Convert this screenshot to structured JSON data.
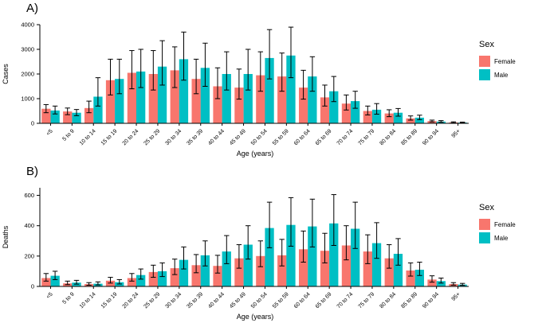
{
  "page": {
    "background": "#ffffff"
  },
  "chart_data": [
    {
      "type": "bar",
      "panel_label": "A)",
      "ylabel": "Cases",
      "xlabel": "Age (years)",
      "ylim": [
        0,
        4000
      ],
      "yticks": [
        0,
        1000,
        2000,
        3000,
        4000
      ],
      "grid": false,
      "error_bars": true,
      "legend": {
        "title": "Sex",
        "position": "right"
      },
      "categories": [
        "<5",
        "5 to 9",
        "10 to 14",
        "15 to 19",
        "20 to 24",
        "25 to 29",
        "30 to 34",
        "35 to 39",
        "40 to 44",
        "45 to 49",
        "50 to 54",
        "55 to 59",
        "60 to 64",
        "65 to 69",
        "70 to 74",
        "75 to 79",
        "80 to 84",
        "85 to 89",
        "90 to 94",
        "95+"
      ],
      "series": [
        {
          "name": "Female",
          "color": "#F8766D",
          "values": [
            590,
            480,
            620,
            1750,
            2050,
            2000,
            2150,
            1800,
            1500,
            1450,
            1950,
            1900,
            1450,
            1050,
            800,
            500,
            400,
            200,
            90,
            35
          ],
          "err_low": [
            430,
            350,
            430,
            1150,
            1400,
            1350,
            1450,
            1200,
            1000,
            980,
            1300,
            1300,
            980,
            700,
            540,
            340,
            270,
            130,
            60,
            20
          ],
          "err_high": [
            760,
            620,
            900,
            2600,
            2950,
            2950,
            3100,
            2600,
            2250,
            2200,
            2900,
            2850,
            2150,
            1550,
            1150,
            700,
            550,
            300,
            130,
            60
          ]
        },
        {
          "name": "Male",
          "color": "#00BFC4",
          "values": [
            520,
            430,
            1080,
            1800,
            2100,
            2300,
            2600,
            2250,
            2000,
            2000,
            2650,
            2750,
            1900,
            1300,
            900,
            550,
            430,
            230,
            70,
            30
          ],
          "err_low": [
            380,
            310,
            700,
            1200,
            1450,
            1550,
            1750,
            1500,
            1350,
            1350,
            1800,
            1850,
            1300,
            880,
            610,
            370,
            290,
            150,
            45,
            18
          ],
          "err_high": [
            700,
            560,
            1850,
            2600,
            3000,
            3350,
            3700,
            3250,
            2900,
            3000,
            3800,
            3900,
            2700,
            1900,
            1300,
            800,
            600,
            330,
            110,
            50
          ]
        }
      ]
    },
    {
      "type": "bar",
      "panel_label": "B)",
      "ylabel": "Deaths",
      "xlabel": "Age (years)",
      "ylim": [
        0,
        650
      ],
      "yticks": [
        0,
        200,
        400,
        600
      ],
      "grid": false,
      "error_bars": true,
      "legend": {
        "title": "Sex",
        "position": "right"
      },
      "categories": [
        "<5",
        "5 to 9",
        "10 to 14",
        "15 to 19",
        "20 to 24",
        "25 to 29",
        "30 to 34",
        "35 to 39",
        "40 to 44",
        "45 to 49",
        "50 to 54",
        "55 to 59",
        "60 to 64",
        "65 to 69",
        "70 to 74",
        "75 to 79",
        "80 to 84",
        "85 to 89",
        "90 to 94",
        "95+"
      ],
      "series": [
        {
          "name": "Female",
          "color": "#F8766D",
          "values": [
            55,
            20,
            15,
            38,
            55,
            95,
            120,
            140,
            135,
            185,
            200,
            205,
            245,
            235,
            270,
            230,
            185,
            105,
            45,
            15
          ],
          "err_low": [
            35,
            12,
            8,
            22,
            35,
            60,
            78,
            90,
            88,
            120,
            130,
            135,
            160,
            155,
            175,
            150,
            120,
            68,
            28,
            9
          ],
          "err_high": [
            85,
            35,
            25,
            60,
            85,
            140,
            180,
            210,
            205,
            275,
            300,
            310,
            365,
            350,
            400,
            340,
            275,
            155,
            70,
            25
          ]
        },
        {
          "name": "Male",
          "color": "#00BFC4",
          "values": [
            70,
            25,
            18,
            28,
            75,
            100,
            175,
            205,
            230,
            275,
            385,
            405,
            395,
            415,
            380,
            285,
            215,
            110,
            35,
            12
          ],
          "err_low": [
            45,
            15,
            10,
            16,
            48,
            65,
            115,
            135,
            150,
            180,
            255,
            265,
            260,
            270,
            250,
            185,
            140,
            72,
            22,
            7
          ],
          "err_high": [
            100,
            40,
            30,
            45,
            115,
            155,
            260,
            300,
            335,
            400,
            555,
            585,
            575,
            605,
            555,
            420,
            315,
            160,
            55,
            20
          ]
        }
      ]
    }
  ]
}
